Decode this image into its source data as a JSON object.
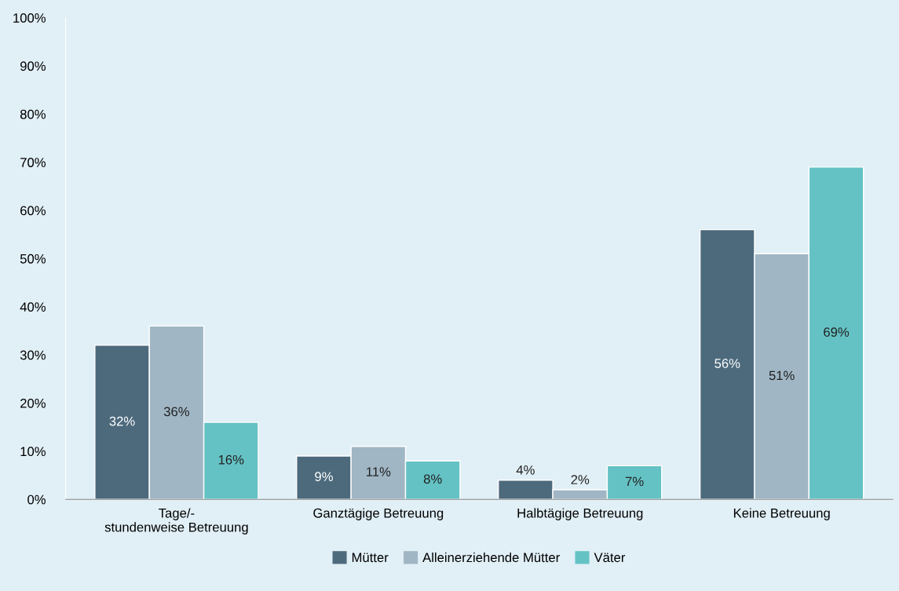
{
  "chart_data": {
    "type": "bar",
    "categories": [
      "Tage/-\nstundenweise Betreuung",
      "Ganztägige Betreuung",
      "Halbtägige Betreuung",
      "Keine Betreuung"
    ],
    "series": [
      {
        "name": "Mütter",
        "color": "#4d6a7d",
        "values": [
          32,
          9,
          4,
          56
        ],
        "value_labels": [
          "32%",
          "9%",
          "4%",
          "56%"
        ]
      },
      {
        "name": "Alleinerziehende Mütter",
        "color": "#a0b6c4",
        "values": [
          36,
          11,
          2,
          51
        ],
        "value_labels": [
          "36%",
          "11%",
          "2%",
          "51%"
        ]
      },
      {
        "name": "Väter",
        "color": "#64c2c4",
        "values": [
          16,
          8,
          7,
          69
        ],
        "value_labels": [
          "16%",
          "8%",
          "7%",
          "69%"
        ]
      }
    ],
    "ylim": [
      0,
      100
    ],
    "yticks": [
      {
        "value": 0,
        "label": "0%"
      },
      {
        "value": 10,
        "label": "10%"
      },
      {
        "value": 20,
        "label": "20%"
      },
      {
        "value": 30,
        "label": "30%"
      },
      {
        "value": 40,
        "label": "40%"
      },
      {
        "value": 50,
        "label": "50%"
      },
      {
        "value": 60,
        "label": "60%"
      },
      {
        "value": 70,
        "label": "70%"
      },
      {
        "value": 80,
        "label": "80%"
      },
      {
        "value": 90,
        "label": "90%"
      },
      {
        "value": 100,
        "label": "100%"
      }
    ],
    "grid": false,
    "legend": "bottom"
  }
}
